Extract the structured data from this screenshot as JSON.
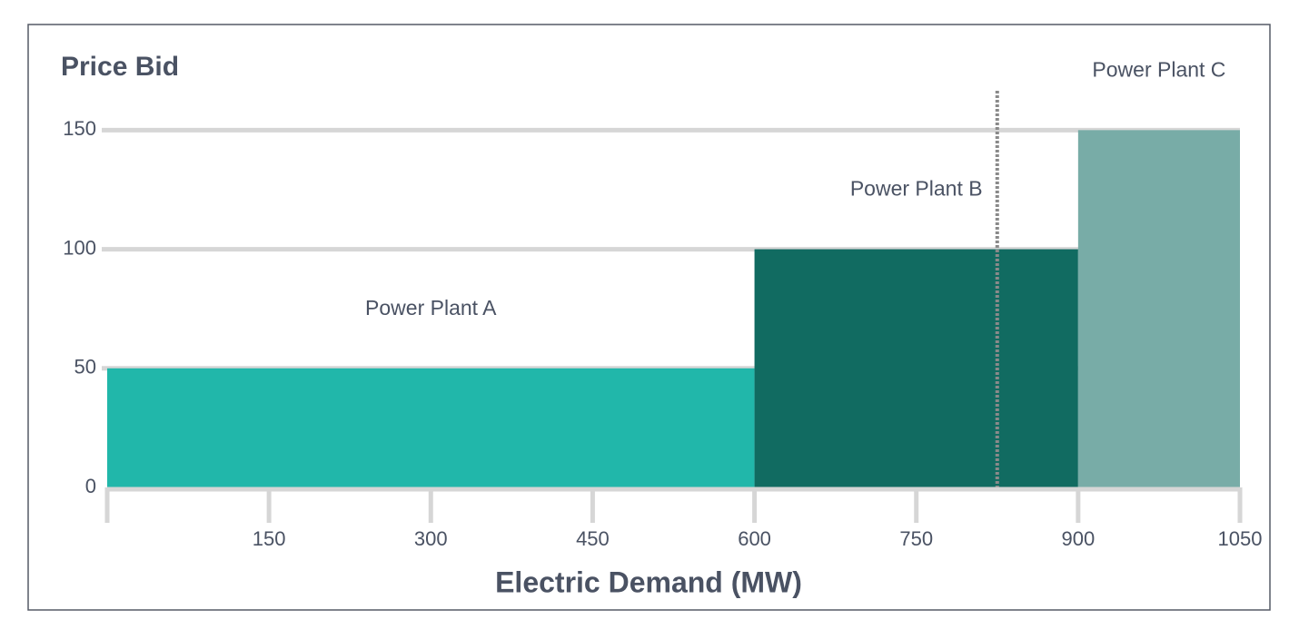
{
  "chart_data": {
    "type": "supply",
    "title": "Price Bid",
    "x_label": "Electric Demand (MW)",
    "bins": [
      0,
      600,
      900,
      1050
    ],
    "values": [
      50,
      100,
      150
    ],
    "labels": [
      "Power Plant A",
      "Power Plant B",
      "Power Plant C"
    ],
    "colors": [
      "#21b7aa",
      "#116b61",
      "#78aca7"
    ],
    "marker_x": 825,
    "xlim": [
      0,
      1050
    ],
    "xticks": [
      150,
      300,
      450,
      600,
      750,
      900,
      1050
    ],
    "ylim": [
      0,
      165
    ],
    "yticks": [
      0,
      50,
      100,
      150
    ],
    "grid": true
  }
}
